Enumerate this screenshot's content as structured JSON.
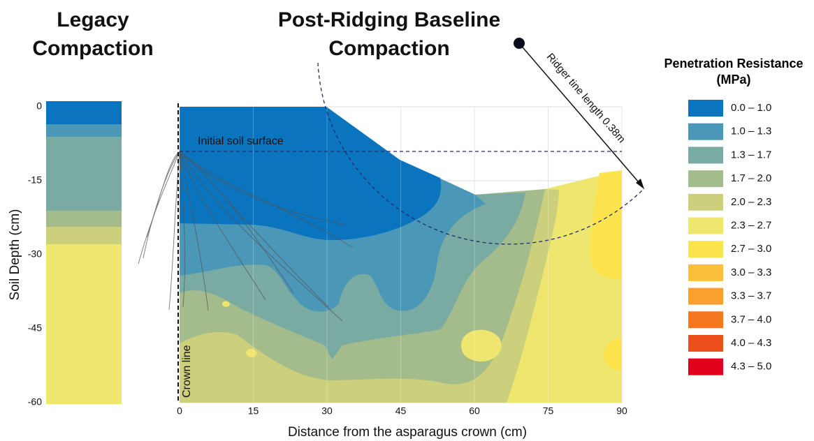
{
  "chart_data": {
    "type": "contour",
    "title_left": "Legacy Compaction",
    "title_right": "Post-Ridging Baseline Compaction",
    "x_label": "Distance from the asparagus crown (cm)",
    "y_label": "Soil Depth (cm)",
    "xlim": [
      0,
      90
    ],
    "ylim": [
      -60,
      0
    ],
    "xticks": [
      0,
      15,
      30,
      45,
      60,
      75,
      90
    ],
    "yticks": [
      0,
      -15,
      -30,
      -45,
      -60
    ],
    "grid": true,
    "legend_title": "Penetration Resistance (MPa)",
    "legend": [
      {
        "label": "0.0 – 1.0",
        "color": "#0a74bf"
      },
      {
        "label": "1.0 – 1.3",
        "color": "#4a97b8"
      },
      {
        "label": "1.3 – 1.7",
        "color": "#7aaba3"
      },
      {
        "label": "1.7 – 2.0",
        "color": "#a4bb8c"
      },
      {
        "label": "2.0 – 2.3",
        "color": "#cccf7c"
      },
      {
        "label": "2.3 – 2.7",
        "color": "#eee66e"
      },
      {
        "label": "2.7 – 3.0",
        "color": "#fde44e"
      },
      {
        "label": "3.0 – 3.3",
        "color": "#fbbf3b"
      },
      {
        "label": "3.3 – 3.7",
        "color": "#f9a02e"
      },
      {
        "label": "3.7 – 4.0",
        "color": "#f5771f"
      },
      {
        "label": "4.0 – 4.3",
        "color": "#ec4f1c"
      },
      {
        "label": "4.3 – 5.0",
        "color": "#e0001b"
      }
    ],
    "annotations": [
      "Initial soil surface",
      "Crown line",
      "Ridger tine length 0.38m"
    ]
  }
}
